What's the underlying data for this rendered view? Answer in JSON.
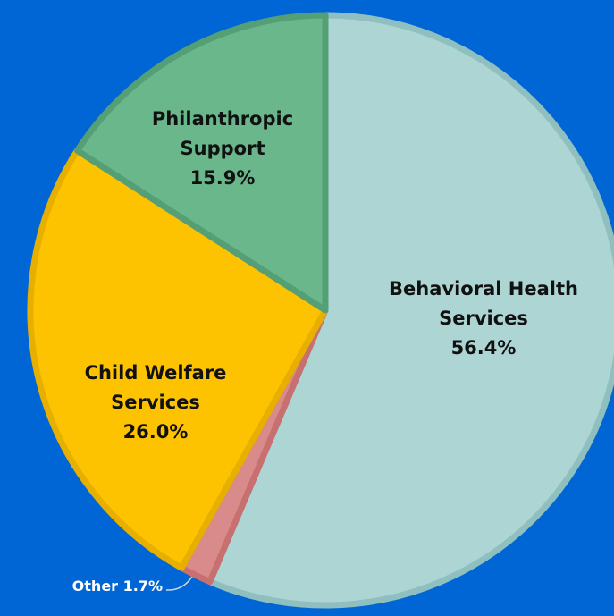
{
  "chart_data": {
    "type": "pie",
    "slices": [
      {
        "label": "Behavioral Health Services",
        "label_lines": [
          "Behavioral Health",
          "Services"
        ],
        "value": 56.4,
        "value_text": "56.4%",
        "color": "#acd5d3",
        "stroke": "#8fbfbf"
      },
      {
        "label": "Other",
        "label_lines": [
          "Other"
        ],
        "value": 1.7,
        "value_text": "1.7%",
        "color": "#d98a8a",
        "stroke": "#c87070"
      },
      {
        "label": "Child Welfare Services",
        "label_lines": [
          "Child Welfare",
          "Services"
        ],
        "value": 26.0,
        "value_text": "26.0%",
        "color": "#fdc300",
        "stroke": "#e7b000"
      },
      {
        "label": "Philanthropic Support",
        "label_lines": [
          "Philanthropic",
          "Support"
        ],
        "value": 15.9,
        "value_text": "15.9%",
        "color": "#69b78b",
        "stroke": "#559f76"
      }
    ],
    "start_angle_deg": 0,
    "direction": "clockwise",
    "background": "#0066d6",
    "other_leader_color": "#cfd8e4"
  }
}
